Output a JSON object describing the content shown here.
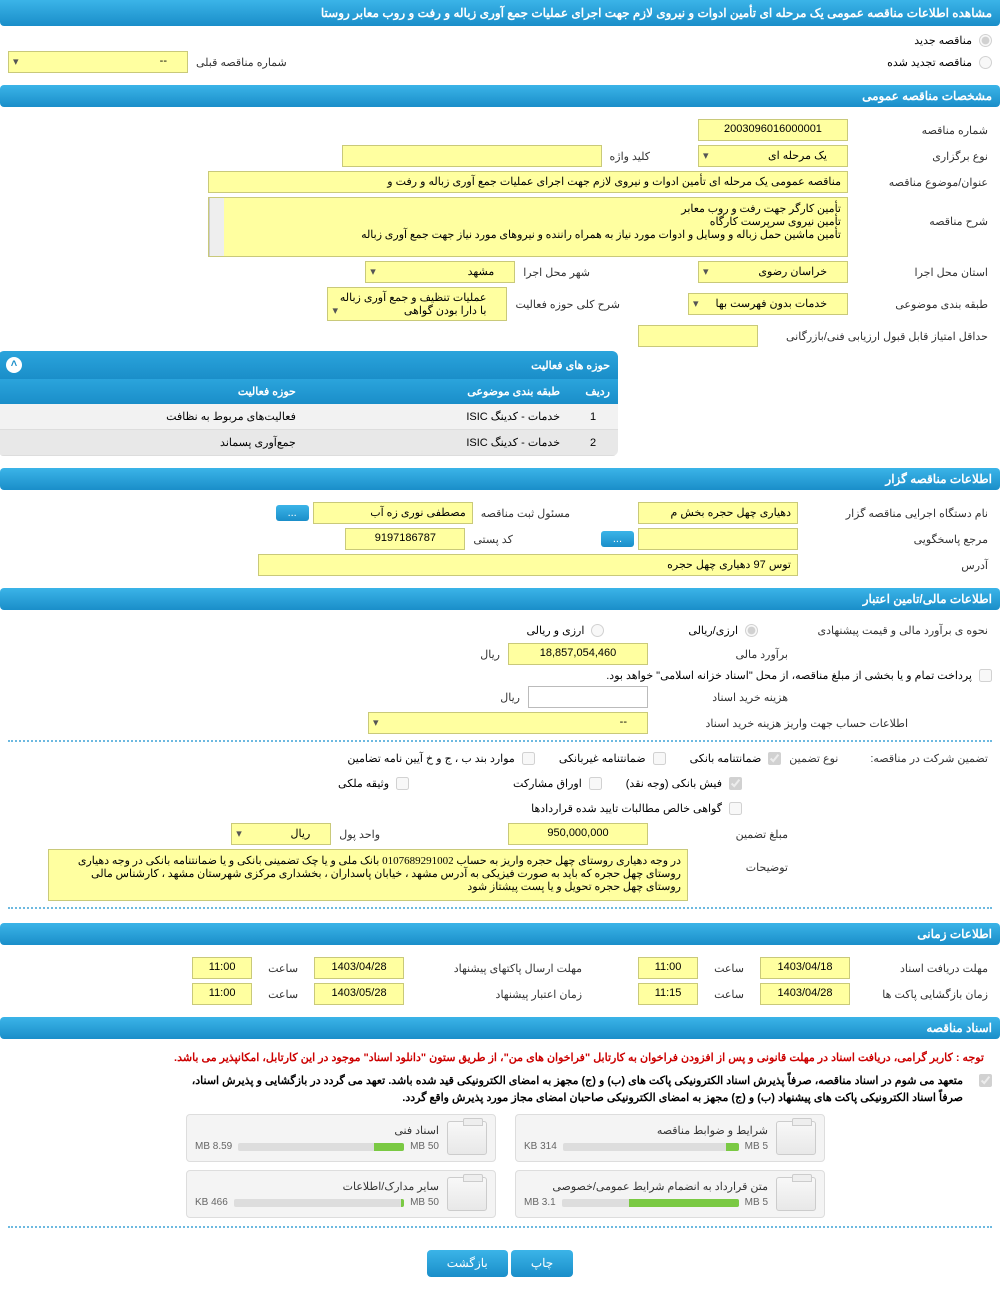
{
  "page_title": "مشاهده اطلاعات مناقصه عمومی یک مرحله ای تأمین ادوات و نیروی لازم جهت اجرای عملیات جمع آوری زباله و رفت و روب معابر روستا",
  "tender_status": {
    "new_label": "مناقصه جدید",
    "renewed_label": "مناقصه تجدید شده",
    "prev_number_label": "شماره مناقصه قبلی",
    "prev_number_value": "--"
  },
  "section_general": "مشخصات مناقصه عمومی",
  "general": {
    "tender_number_label": "شماره مناقصه",
    "tender_number": "2003096016000001",
    "holding_type_label": "نوع برگزاری",
    "holding_type": "یک مرحله ای",
    "keyword_label": "کلید واژه",
    "keyword": "",
    "subject_label": "عنوان/موضوع مناقصه",
    "subject": "مناقصه عمومی یک مرحله ای تأمین ادوات و نیروی لازم جهت اجرای عملیات جمع آوری زباله و رفت و",
    "description_label": "شرح مناقصه",
    "description": "تأمین کارگر جهت رفت و روب معابر\nتأمین نیروی سرپرست کارگاه\nتأمین ماشین حمل زباله و وسایل و ادوات مورد نیاز به همراه راننده و نیروهای مورد نیاز جهت جمع آوری زباله",
    "province_label": "استان محل اجرا",
    "province": "خراسان رضوی",
    "city_label": "شهر محل اجرا",
    "city": "مشهد",
    "category_label": "طبقه بندی موضوعی",
    "category": "خدمات بدون فهرست بها",
    "activity_scope_label": "شرح کلی حوزه فعالیت",
    "activity_scope": "عملیات تنظیف و جمع آوری زباله با دارا بودن گواهی",
    "min_score_label": "حداقل امتیاز قابل قبول ارزیابی فنی/بازرگانی",
    "min_score": ""
  },
  "activity_table": {
    "title": "حوزه های فعالیت",
    "col_row": "ردیف",
    "col_category": "طبقه بندی موضوعی",
    "col_activity": "حوزه فعالیت",
    "rows": [
      {
        "n": "1",
        "cat": "خدمات - کدینگ ISIC",
        "act": "فعالیت‌های مربوط به نظافت"
      },
      {
        "n": "2",
        "cat": "خدمات - کدینگ ISIC",
        "act": "جمع‌آوری پسماند"
      }
    ]
  },
  "section_organizer": "اطلاعات مناقصه گزار",
  "organizer": {
    "org_name_label": "نام دستگاه اجرایی مناقصه گزار",
    "org_name": "دهیاری چهل حجره بخش م",
    "registrar_label": "مسئول ثبت مناقصه",
    "registrar": "مصطفی نوری زه آب",
    "contact_label": "مرجع پاسخگویی",
    "contact_btn": "...",
    "postal_label": "کد پستی",
    "postal": "9197186787",
    "address_label": "آدرس",
    "address": "توس 97 دهیاری چهل حجره"
  },
  "section_finance": "اطلاعات مالی/تامین اعتبار",
  "finance": {
    "estimate_method_label": "نحوه ی برآورد مالی و قیمت پیشنهادی",
    "opt_arzi_riali": "ارزی/ریالی",
    "opt_arzi_va_riali": "ارزی و ریالی",
    "estimate_label": "برآورد مالی",
    "estimate_value": "18,857,054,460",
    "estimate_unit": "ریال",
    "payment_note": "پرداخت تمام و یا بخشی از مبلغ مناقصه، از محل \"اسناد خزانه اسلامی\" خواهد بود.",
    "doc_fee_label": "هزینه خرید اسناد",
    "doc_fee": "",
    "doc_fee_unit": "ریال",
    "account_label": "اطلاعات حساب جهت واریز هزینه خرید اسناد",
    "account_value": "--"
  },
  "guarantee": {
    "participation_label": "تضمین شرکت در مناقصه:",
    "type_label": "نوع تضمین",
    "opt_bank": "ضمانتنامه بانکی",
    "opt_nonbank": "ضمانتنامه غیربانکی",
    "opt_bjk": "موارد بند ب ، ج و خ آیین نامه تضامین",
    "opt_fish": "فیش بانکی (وجه نقد)",
    "opt_oragh": "اوراق مشارکت",
    "opt_melki": "وثیقه ملکی",
    "opt_contract": "گواهی خالص مطالبات تایید شده قراردادها",
    "amount_label": "مبلغ تضمین",
    "amount": "950,000,000",
    "unit_label": "واحد پول",
    "unit": "ریال",
    "notes_label": "توضیحات",
    "notes": "در وجه دهیاری روستای چهل حجره واریز به حساب 0107689291002 بانک ملی و یا چک تضمینی بانکی و یا ضمانتنامه بانکی در وجه دهیاری روستای چهل حجره که باید به صورت فیزیکی به آدرس مشهد ، خیابان پاسداران ، بخشداری مرکزی شهرستان مشهد ، کارشناس مالی روستای چهل حجره تحویل و یا پست پیشتاز شود"
  },
  "section_time": "اطلاعات زمانی",
  "time": {
    "receive_deadline_label": "مهلت دریافت اسناد",
    "receive_deadline_date": "1403/04/18",
    "hour_label": "ساعت",
    "receive_deadline_time": "11:00",
    "send_deadline_label": "مهلت ارسال پاکتهای پیشنهاد",
    "send_deadline_date": "1403/04/28",
    "send_deadline_time": "11:00",
    "open_label": "زمان بازگشایی پاکت ها",
    "open_date": "1403/04/28",
    "open_time": "11:15",
    "validity_label": "زمان اعتبار پیشنهاد",
    "validity_date": "1403/05/28",
    "validity_time": "11:00"
  },
  "section_docs": "اسناد مناقصه",
  "docs": {
    "notice1": "توجه : کاربر گرامی، دریافت اسناد در مهلت قانونی و پس از افزودن فراخوان به کارتابل \"فراخوان های من\"، از طریق ستون \"دانلود اسناد\" موجود در این کارتابل، امکانپذیر می باشد.",
    "notice2a": "متعهد می شوم در اسناد مناقصه، صرفاً پذیرش اسناد الکترونیکی پاکت های (ب) و (ج) مجهز به امضای الکترونیکی قید شده باشد. تعهد می گردد در بازگشایی و پذیرش اسناد،",
    "notice2b": "صرفاً اسناد الکترونیکی پاکت های پیشنهاد (ب) و (ج) مجهز به امضای الکترونیکی صاحبان امضای مجاز مورد پذیرش واقع گردد.",
    "files": [
      {
        "title": "شرایط و ضوابط مناقصه",
        "size": "314 KB",
        "max": "5 MB",
        "pct": 7
      },
      {
        "title": "اسناد فنی",
        "size": "8.59 MB",
        "max": "50 MB",
        "pct": 18
      },
      {
        "title": "متن قرارداد به انضمام شرایط عمومی/خصوصی",
        "size": "3.1 MB",
        "max": "5 MB",
        "pct": 62
      },
      {
        "title": "سایر مدارک/اطلاعات",
        "size": "466 KB",
        "max": "50 MB",
        "pct": 2
      }
    ]
  },
  "buttons": {
    "print": "چاپ",
    "back": "بازگشت"
  }
}
